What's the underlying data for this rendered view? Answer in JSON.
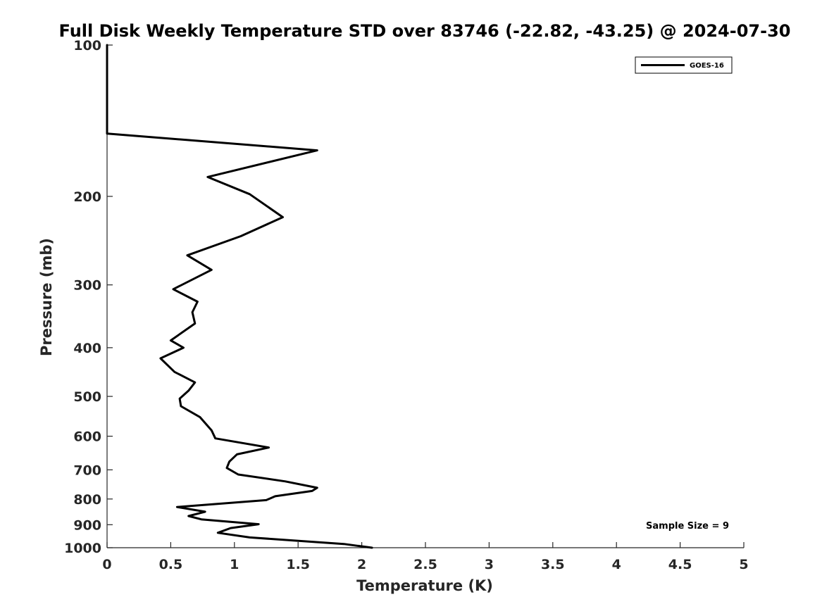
{
  "chart_data": {
    "type": "line",
    "title": "Full Disk Weekly Temperature STD over 83746 (-22.82, -43.25) @ 2024-07-30",
    "xlabel": "Temperature (K)",
    "ylabel": "Pressure (mb)",
    "xlim": [
      0,
      5
    ],
    "ylim": [
      100,
      1000
    ],
    "yscale": "log",
    "yreversed": true,
    "x_ticks": [
      "0",
      "0.5",
      "1",
      "1.5",
      "2",
      "2.5",
      "3",
      "3.5",
      "4",
      "4.5",
      "5"
    ],
    "y_ticks": [
      "100",
      "200",
      "300",
      "400",
      "500",
      "600",
      "700",
      "800",
      "900",
      "1000"
    ],
    "grid": false,
    "legend_position": "top-right",
    "annotation": "Sample Size = 9",
    "series": [
      {
        "name": "GOES-16",
        "color": "#000000",
        "points": [
          [
            0.0,
            100
          ],
          [
            0.0,
            150
          ],
          [
            1.65,
            162
          ],
          [
            0.79,
            183
          ],
          [
            1.12,
            198
          ],
          [
            1.38,
            220
          ],
          [
            1.05,
            240
          ],
          [
            0.63,
            262
          ],
          [
            0.82,
            280
          ],
          [
            0.52,
            306
          ],
          [
            0.71,
            324
          ],
          [
            0.67,
            340
          ],
          [
            0.69,
            358
          ],
          [
            0.5,
            387
          ],
          [
            0.6,
            400
          ],
          [
            0.42,
            420
          ],
          [
            0.53,
            447
          ],
          [
            0.69,
            469
          ],
          [
            0.64,
            487
          ],
          [
            0.57,
            505
          ],
          [
            0.58,
            523
          ],
          [
            0.73,
            550
          ],
          [
            0.82,
            584
          ],
          [
            0.85,
            606
          ],
          [
            1.27,
            632
          ],
          [
            1.02,
            652
          ],
          [
            0.96,
            674
          ],
          [
            0.94,
            694
          ],
          [
            1.03,
            715
          ],
          [
            1.4,
            738
          ],
          [
            1.65,
            760
          ],
          [
            1.61,
            771
          ],
          [
            1.32,
            790
          ],
          [
            1.25,
            804
          ],
          [
            0.55,
            830
          ],
          [
            0.77,
            848
          ],
          [
            0.64,
            865
          ],
          [
            0.74,
            878
          ],
          [
            1.19,
            898
          ],
          [
            0.97,
            914
          ],
          [
            0.87,
            934
          ],
          [
            1.12,
            954
          ],
          [
            1.86,
            983
          ],
          [
            2.08,
            1000
          ]
        ]
      }
    ]
  }
}
